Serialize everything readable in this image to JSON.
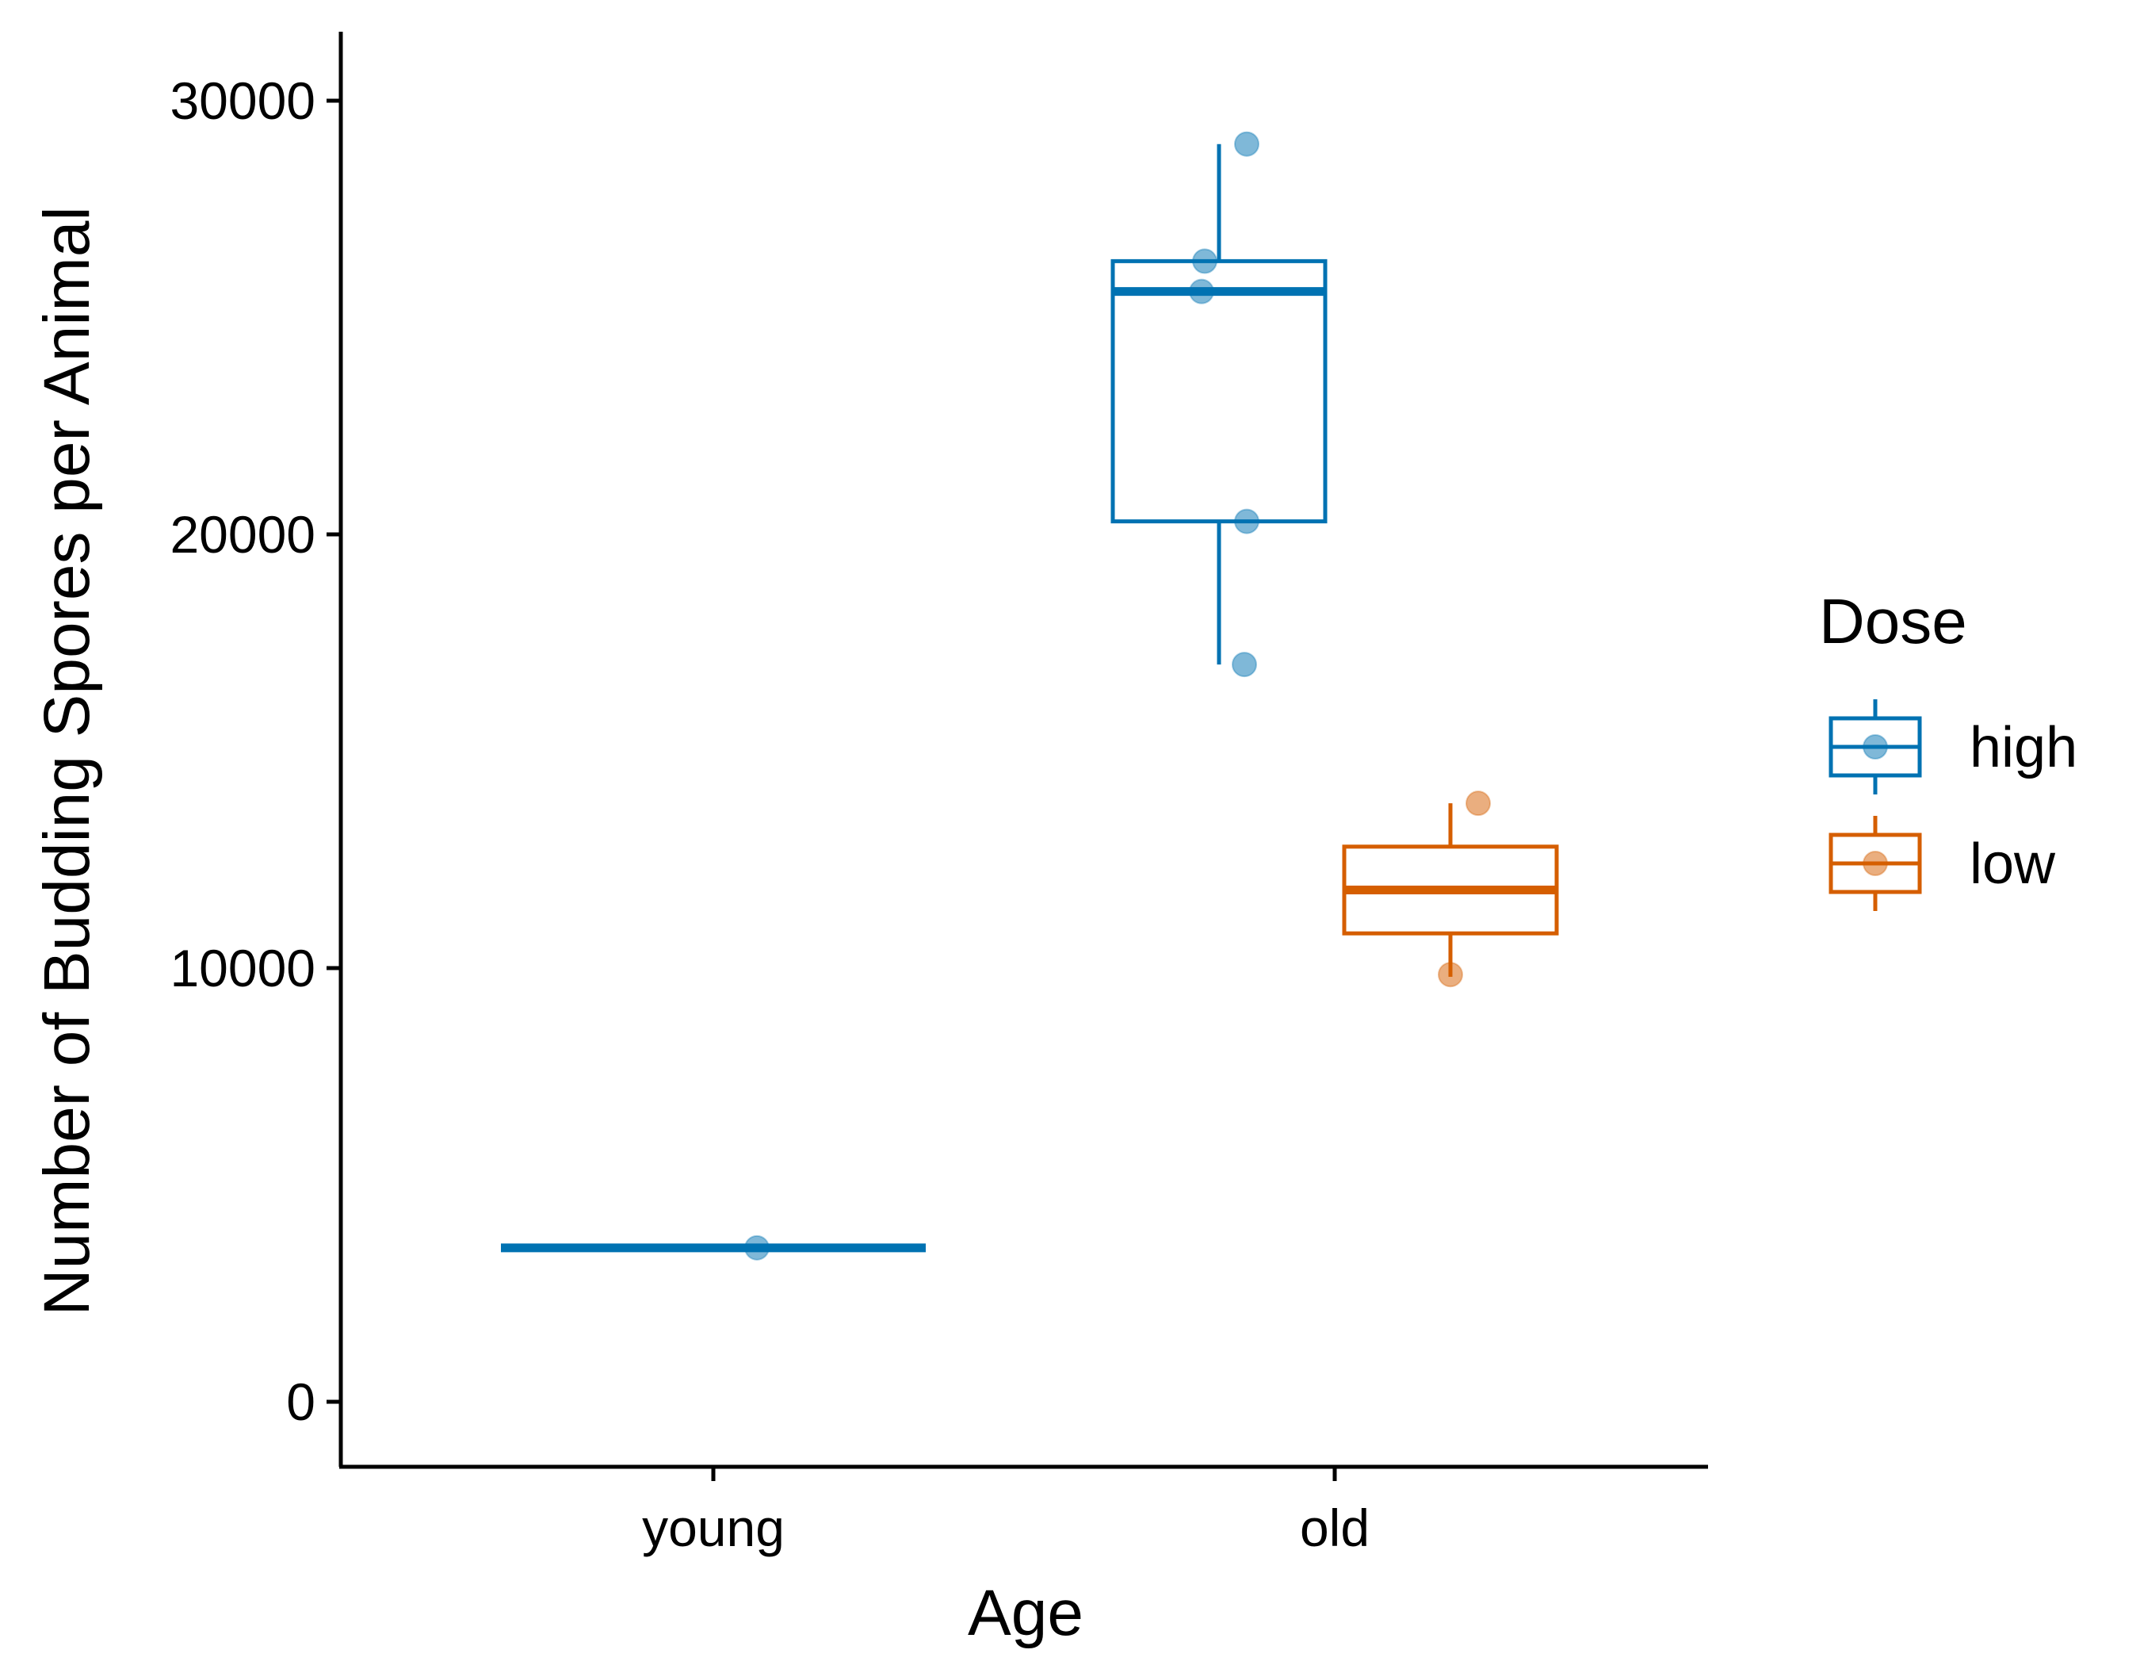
{
  "chart_data": {
    "type": "boxplot",
    "xlabel": "Age",
    "ylabel": "Number of Budding Spores per Animal",
    "categories": [
      "young",
      "old"
    ],
    "ylim": [
      -1500,
      31600
    ],
    "yticks": [
      0,
      10000,
      20000,
      30000
    ],
    "grid": false,
    "legend": {
      "title": "Dose",
      "position": "right",
      "entries": [
        "high",
        "low"
      ]
    },
    "colors": {
      "high": "#0072B2",
      "low": "#D55E00"
    },
    "series": [
      {
        "name": "high",
        "boxes": [
          {
            "category": "young",
            "min": 3550,
            "q1": 3550,
            "median": 3550,
            "q3": 3550,
            "max": 3550
          },
          {
            "category": "old",
            "min": 17000,
            "q1": 20300,
            "median": 25600,
            "q3": 26300,
            "max": 29000
          }
        ],
        "points": [
          {
            "category": "young",
            "value": 3550
          },
          {
            "category": "old",
            "value": 29000
          },
          {
            "category": "old",
            "value": 26300
          },
          {
            "category": "old",
            "value": 25600
          },
          {
            "category": "old",
            "value": 20300
          },
          {
            "category": "old",
            "value": 17000
          }
        ]
      },
      {
        "name": "low",
        "boxes": [
          {
            "category": "old",
            "min": 9800,
            "q1": 10800,
            "median": 11800,
            "q3": 12800,
            "max": 13800
          }
        ],
        "points": [
          {
            "category": "old",
            "value": 13800
          },
          {
            "category": "old",
            "value": 9850
          }
        ]
      }
    ]
  }
}
